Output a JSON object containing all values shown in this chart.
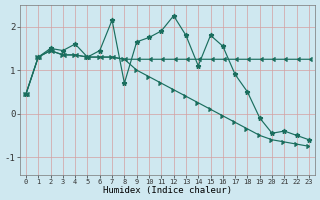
{
  "xlabel": "Humidex (Indice chaleur)",
  "background_color": "#cfe8f0",
  "grid_color": "#b8d8e4",
  "line_color": "#1a6e5e",
  "ylim": [
    -1.4,
    2.5
  ],
  "xlim": [
    -0.5,
    23.5
  ],
  "yticks": [
    -1,
    0,
    1,
    2
  ],
  "xticks": [
    0,
    1,
    2,
    3,
    4,
    5,
    6,
    7,
    8,
    9,
    10,
    11,
    12,
    13,
    14,
    15,
    16,
    17,
    18,
    19,
    20,
    21,
    22,
    23
  ],
  "s1_x": [
    0,
    1,
    2,
    3,
    4,
    5,
    6,
    7,
    8,
    9,
    10,
    11,
    12,
    13,
    14,
    15,
    16,
    17,
    18,
    19,
    20,
    21,
    22,
    23
  ],
  "s1_y": [
    0.45,
    1.3,
    1.5,
    1.45,
    1.6,
    1.3,
    1.45,
    2.15,
    0.7,
    1.65,
    1.75,
    1.9,
    2.25,
    1.8,
    1.1,
    1.8,
    1.55,
    0.9,
    0.5,
    -0.1,
    -0.45,
    -0.4,
    -0.5,
    -0.6
  ],
  "s2_x": [
    0,
    1,
    2,
    3,
    4,
    5,
    6,
    7,
    8,
    9,
    10,
    11,
    12,
    13,
    14,
    15,
    16,
    17,
    18,
    19,
    20,
    21,
    22,
    23
  ],
  "s2_y": [
    0.45,
    1.3,
    1.45,
    1.35,
    1.35,
    1.3,
    1.3,
    1.3,
    1.25,
    1.25,
    1.25,
    1.25,
    1.25,
    1.25,
    1.25,
    1.25,
    1.25,
    1.25,
    1.25,
    1.25,
    1.25,
    1.25,
    1.25,
    1.25
  ],
  "s3_x": [
    0,
    1,
    2,
    3,
    4,
    5,
    6,
    7,
    8,
    9,
    10,
    11,
    12,
    13,
    14,
    15,
    16,
    17,
    18,
    19,
    20,
    21,
    22,
    23
  ],
  "s3_y": [
    0.45,
    1.3,
    1.45,
    1.35,
    1.35,
    1.3,
    1.3,
    1.3,
    1.25,
    1.0,
    0.85,
    0.7,
    0.55,
    0.4,
    0.25,
    0.1,
    -0.05,
    -0.2,
    -0.35,
    -0.5,
    -0.6,
    -0.65,
    -0.7,
    -0.75
  ]
}
